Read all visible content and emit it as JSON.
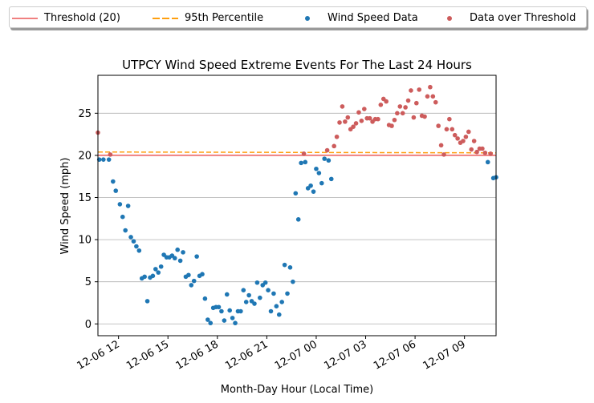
{
  "chart_data": {
    "type": "scatter",
    "title": "UTPCY Wind Speed Extreme Events For The Last 24 Hours",
    "xlabel": "Month-Day Hour (Local Time)",
    "ylabel": "Wind Speed (mph)",
    "xlim": [
      "12-06 10:45",
      "12-07 10:55"
    ],
    "ylim": [
      -1.4,
      29.5
    ],
    "xticks": [
      "12-06 12",
      "12-06 15",
      "12-06 18",
      "12-06 21",
      "12-07 00",
      "12-07 03",
      "12-07 06",
      "12-07 09"
    ],
    "yticks": [
      0,
      5,
      10,
      15,
      20,
      25
    ],
    "grid": "horizontal",
    "legend_position": "top (above plot, 4 columns)",
    "legend": [
      "Threshold (20)",
      "95th Percentile",
      "Wind Speed Data",
      "Data over Threshold"
    ],
    "colors": {
      "threshold": "#f08080",
      "percentile": "#ff9f0f",
      "data": "#1f77b4",
      "over": "#cd5c5c"
    },
    "threshold": 20,
    "percentile_line": {
      "start": 20.4,
      "end": 20.3
    },
    "series": [
      {
        "name": "Wind Speed Data",
        "points": [
          [
            "12-06 10:50",
            19.5
          ],
          [
            "12-06 11:05",
            19.5
          ],
          [
            "12-06 11:25",
            19.5
          ],
          [
            "12-06 11:40",
            16.9
          ],
          [
            "12-06 11:50",
            15.8
          ],
          [
            "12-06 12:05",
            14.2
          ],
          [
            "12-06 12:15",
            12.7
          ],
          [
            "12-06 12:25",
            11.1
          ],
          [
            "12-06 12:35",
            14.0
          ],
          [
            "12-06 12:45",
            10.3
          ],
          [
            "12-06 12:55",
            9.8
          ],
          [
            "12-06 13:05",
            9.2
          ],
          [
            "12-06 13:15",
            8.7
          ],
          [
            "12-06 13:25",
            5.4
          ],
          [
            "12-06 13:35",
            5.6
          ],
          [
            "12-06 13:45",
            2.7
          ],
          [
            "12-06 13:55",
            5.5
          ],
          [
            "12-06 14:05",
            5.7
          ],
          [
            "12-06 14:15",
            6.5
          ],
          [
            "12-06 14:25",
            6.1
          ],
          [
            "12-06 14:35",
            6.8
          ],
          [
            "12-06 14:45",
            8.2
          ],
          [
            "12-06 14:55",
            7.9
          ],
          [
            "12-06 15:05",
            7.9
          ],
          [
            "12-06 15:15",
            8.1
          ],
          [
            "12-06 15:25",
            7.8
          ],
          [
            "12-06 15:35",
            8.8
          ],
          [
            "12-06 15:45",
            7.5
          ],
          [
            "12-06 15:55",
            8.5
          ],
          [
            "12-06 16:05",
            5.6
          ],
          [
            "12-06 16:15",
            5.8
          ],
          [
            "12-06 16:25",
            4.6
          ],
          [
            "12-06 16:35",
            5.1
          ],
          [
            "12-06 16:45",
            8.0
          ],
          [
            "12-06 16:55",
            5.7
          ],
          [
            "12-06 17:05",
            5.9
          ],
          [
            "12-06 17:15",
            3.0
          ],
          [
            "12-06 17:25",
            0.5
          ],
          [
            "12-06 17:35",
            0.1
          ],
          [
            "12-06 17:45",
            1.9
          ],
          [
            "12-06 17:55",
            2.0
          ],
          [
            "12-06 18:05",
            2.0
          ],
          [
            "12-06 18:15",
            1.5
          ],
          [
            "12-06 18:25",
            0.4
          ],
          [
            "12-06 18:35",
            3.5
          ],
          [
            "12-06 18:45",
            1.6
          ],
          [
            "12-06 18:55",
            0.7
          ],
          [
            "12-06 19:05",
            0.1
          ],
          [
            "12-06 19:15",
            1.5
          ],
          [
            "12-06 19:25",
            1.5
          ],
          [
            "12-06 19:35",
            4.0
          ],
          [
            "12-06 19:45",
            2.6
          ],
          [
            "12-06 19:55",
            3.4
          ],
          [
            "12-06 20:05",
            2.7
          ],
          [
            "12-06 20:15",
            2.4
          ],
          [
            "12-06 20:25",
            4.9
          ],
          [
            "12-06 20:35",
            3.1
          ],
          [
            "12-06 20:45",
            4.6
          ],
          [
            "12-06 20:55",
            4.9
          ],
          [
            "12-06 21:05",
            4.0
          ],
          [
            "12-06 21:15",
            1.5
          ],
          [
            "12-06 21:25",
            3.6
          ],
          [
            "12-06 21:35",
            2.1
          ],
          [
            "12-06 21:45",
            1.1
          ],
          [
            "12-06 21:55",
            2.6
          ],
          [
            "12-06 22:05",
            7.0
          ],
          [
            "12-06 22:15",
            3.6
          ],
          [
            "12-06 22:25",
            6.7
          ],
          [
            "12-06 22:35",
            5.0
          ],
          [
            "12-06 22:45",
            15.5
          ],
          [
            "12-06 22:55",
            12.4
          ],
          [
            "12-06 23:05",
            19.1
          ],
          [
            "12-06 23:20",
            19.2
          ],
          [
            "12-06 23:30",
            16.1
          ],
          [
            "12-06 23:40",
            16.4
          ],
          [
            "12-06 23:50",
            15.7
          ],
          [
            "12-07 00:00",
            18.4
          ],
          [
            "12-07 00:10",
            17.9
          ],
          [
            "12-07 00:20",
            16.7
          ],
          [
            "12-07 00:30",
            19.6
          ],
          [
            "12-07 00:45",
            19.4
          ],
          [
            "12-07 00:55",
            17.2
          ],
          [
            "12-07 10:25",
            19.2
          ],
          [
            "12-07 10:45",
            17.3
          ],
          [
            "12-07 10:55",
            17.4
          ]
        ]
      },
      {
        "name": "Data over Threshold",
        "points": [
          [
            "12-06 10:45",
            22.7
          ],
          [
            "12-06 11:30",
            20.1
          ],
          [
            "12-06 23:15",
            20.2
          ],
          [
            "12-07 00:40",
            20.6
          ],
          [
            "12-07 01:05",
            21.1
          ],
          [
            "12-07 01:15",
            22.2
          ],
          [
            "12-07 01:25",
            23.9
          ],
          [
            "12-07 01:35",
            25.8
          ],
          [
            "12-07 01:45",
            24.0
          ],
          [
            "12-07 01:55",
            24.5
          ],
          [
            "12-07 02:05",
            23.1
          ],
          [
            "12-07 02:15",
            23.4
          ],
          [
            "12-07 02:25",
            23.8
          ],
          [
            "12-07 02:35",
            25.1
          ],
          [
            "12-07 02:45",
            24.1
          ],
          [
            "12-07 02:55",
            25.5
          ],
          [
            "12-07 03:05",
            24.4
          ],
          [
            "12-07 03:15",
            24.4
          ],
          [
            "12-07 03:25",
            24.0
          ],
          [
            "12-07 03:35",
            24.3
          ],
          [
            "12-07 03:45",
            24.3
          ],
          [
            "12-07 03:55",
            26.0
          ],
          [
            "12-07 04:05",
            26.7
          ],
          [
            "12-07 04:15",
            26.4
          ],
          [
            "12-07 04:25",
            23.6
          ],
          [
            "12-07 04:35",
            23.5
          ],
          [
            "12-07 04:45",
            24.2
          ],
          [
            "12-07 04:55",
            25.0
          ],
          [
            "12-07 05:05",
            25.8
          ],
          [
            "12-07 05:15",
            25.0
          ],
          [
            "12-07 05:25",
            25.7
          ],
          [
            "12-07 05:35",
            26.5
          ],
          [
            "12-07 05:45",
            27.7
          ],
          [
            "12-07 05:55",
            24.5
          ],
          [
            "12-07 06:05",
            26.2
          ],
          [
            "12-07 06:15",
            27.8
          ],
          [
            "12-07 06:25",
            24.7
          ],
          [
            "12-07 06:35",
            24.6
          ],
          [
            "12-07 06:45",
            27.0
          ],
          [
            "12-07 06:55",
            28.1
          ],
          [
            "12-07 07:05",
            27.0
          ],
          [
            "12-07 07:15",
            26.3
          ],
          [
            "12-07 07:25",
            23.5
          ],
          [
            "12-07 07:35",
            21.2
          ],
          [
            "12-07 07:45",
            20.1
          ],
          [
            "12-07 07:55",
            23.1
          ],
          [
            "12-07 08:05",
            24.3
          ],
          [
            "12-07 08:15",
            23.1
          ],
          [
            "12-07 08:25",
            22.4
          ],
          [
            "12-07 08:35",
            22.0
          ],
          [
            "12-07 08:45",
            21.5
          ],
          [
            "12-07 08:55",
            21.7
          ],
          [
            "12-07 09:05",
            22.2
          ],
          [
            "12-07 09:15",
            22.8
          ],
          [
            "12-07 09:25",
            20.7
          ],
          [
            "12-07 09:35",
            21.7
          ],
          [
            "12-07 09:45",
            20.4
          ],
          [
            "12-07 09:55",
            20.8
          ],
          [
            "12-07 10:05",
            20.8
          ],
          [
            "12-07 10:15",
            20.3
          ],
          [
            "12-07 10:35",
            20.2
          ]
        ]
      }
    ]
  }
}
